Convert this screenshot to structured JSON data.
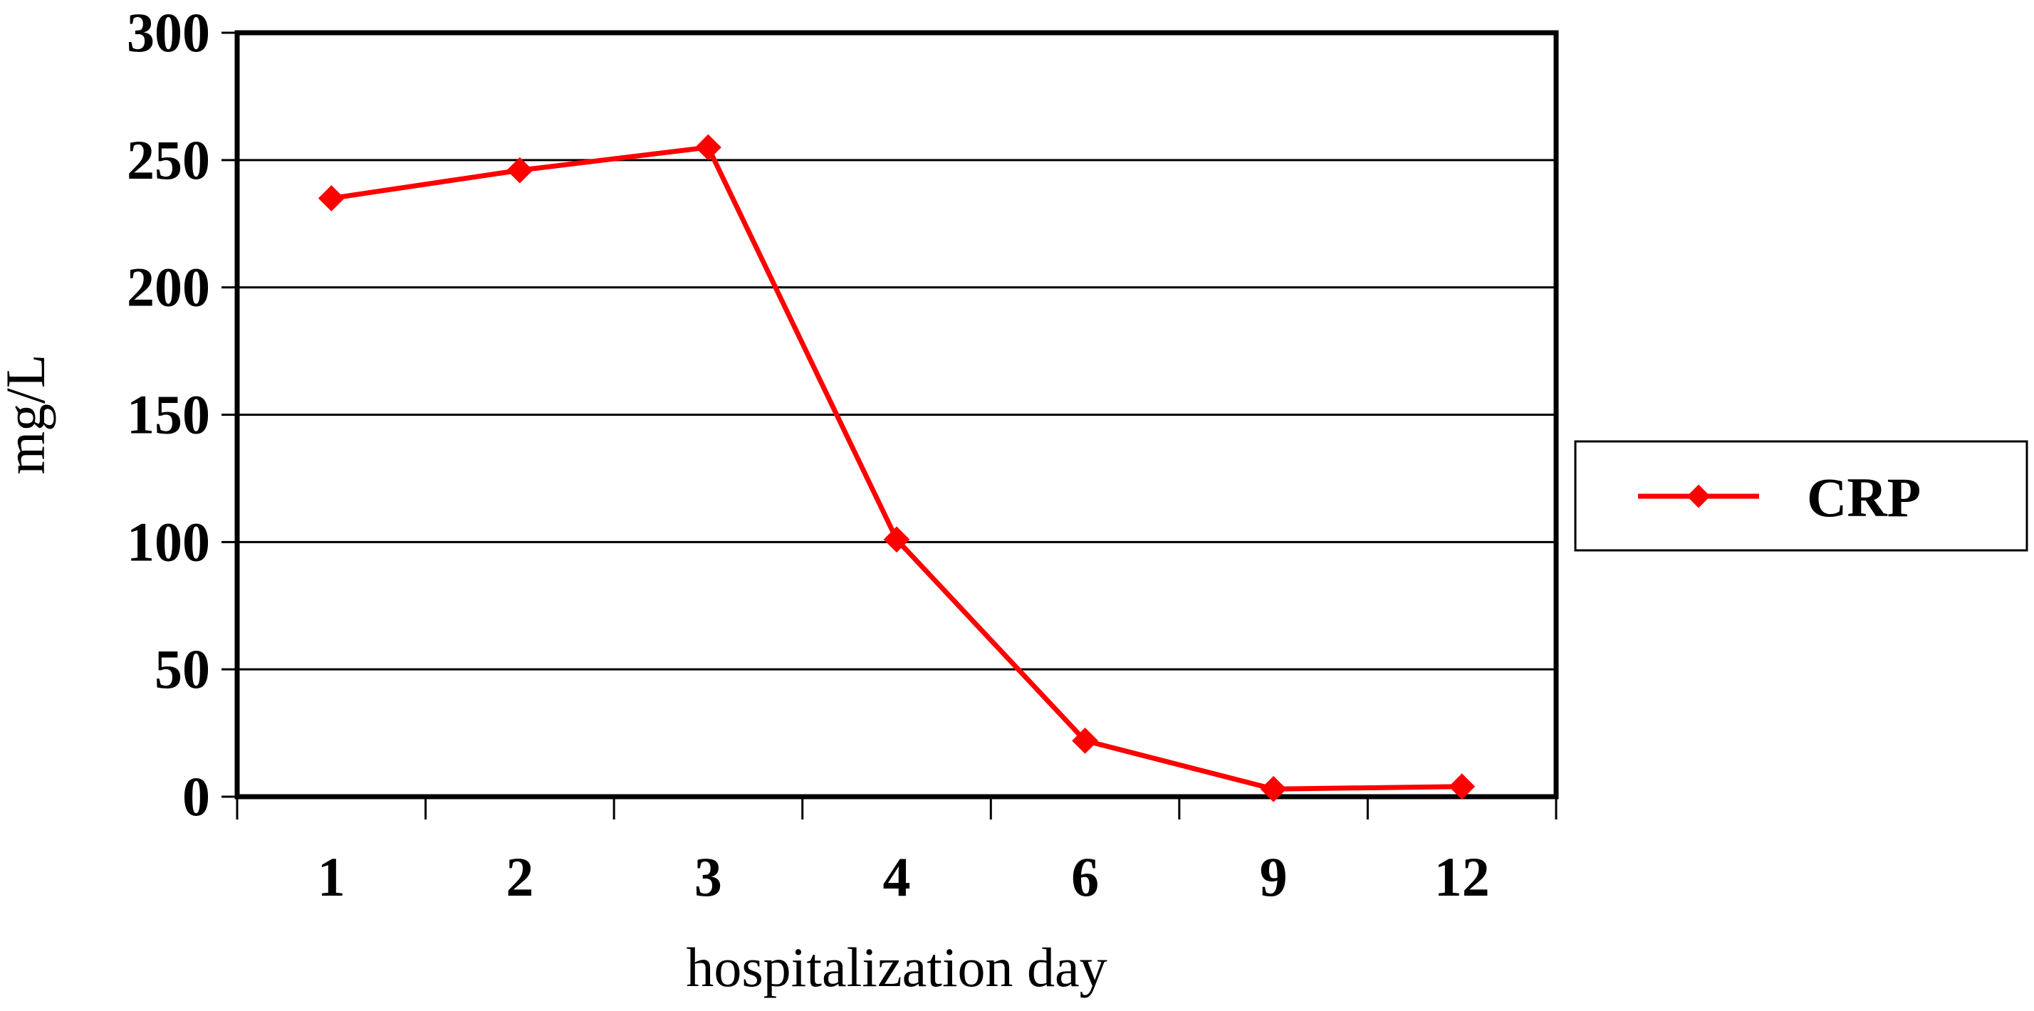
{
  "chart_data": {
    "type": "line",
    "title": "",
    "xlabel": "hospitalization day",
    "ylabel": "mg/L",
    "categories": [
      "1",
      "2",
      "3",
      "4",
      "6",
      "9",
      "12"
    ],
    "series": [
      {
        "name": "CRP",
        "values": [
          235,
          246,
          255,
          101,
          22,
          3,
          4
        ],
        "color": "#ff0000",
        "marker": "diamond"
      }
    ],
    "ylim": [
      0,
      300
    ],
    "yticks": [
      "0",
      "50",
      "100",
      "150",
      "200",
      "250",
      "300"
    ],
    "grid": "horizontal",
    "legend_position": "right"
  }
}
